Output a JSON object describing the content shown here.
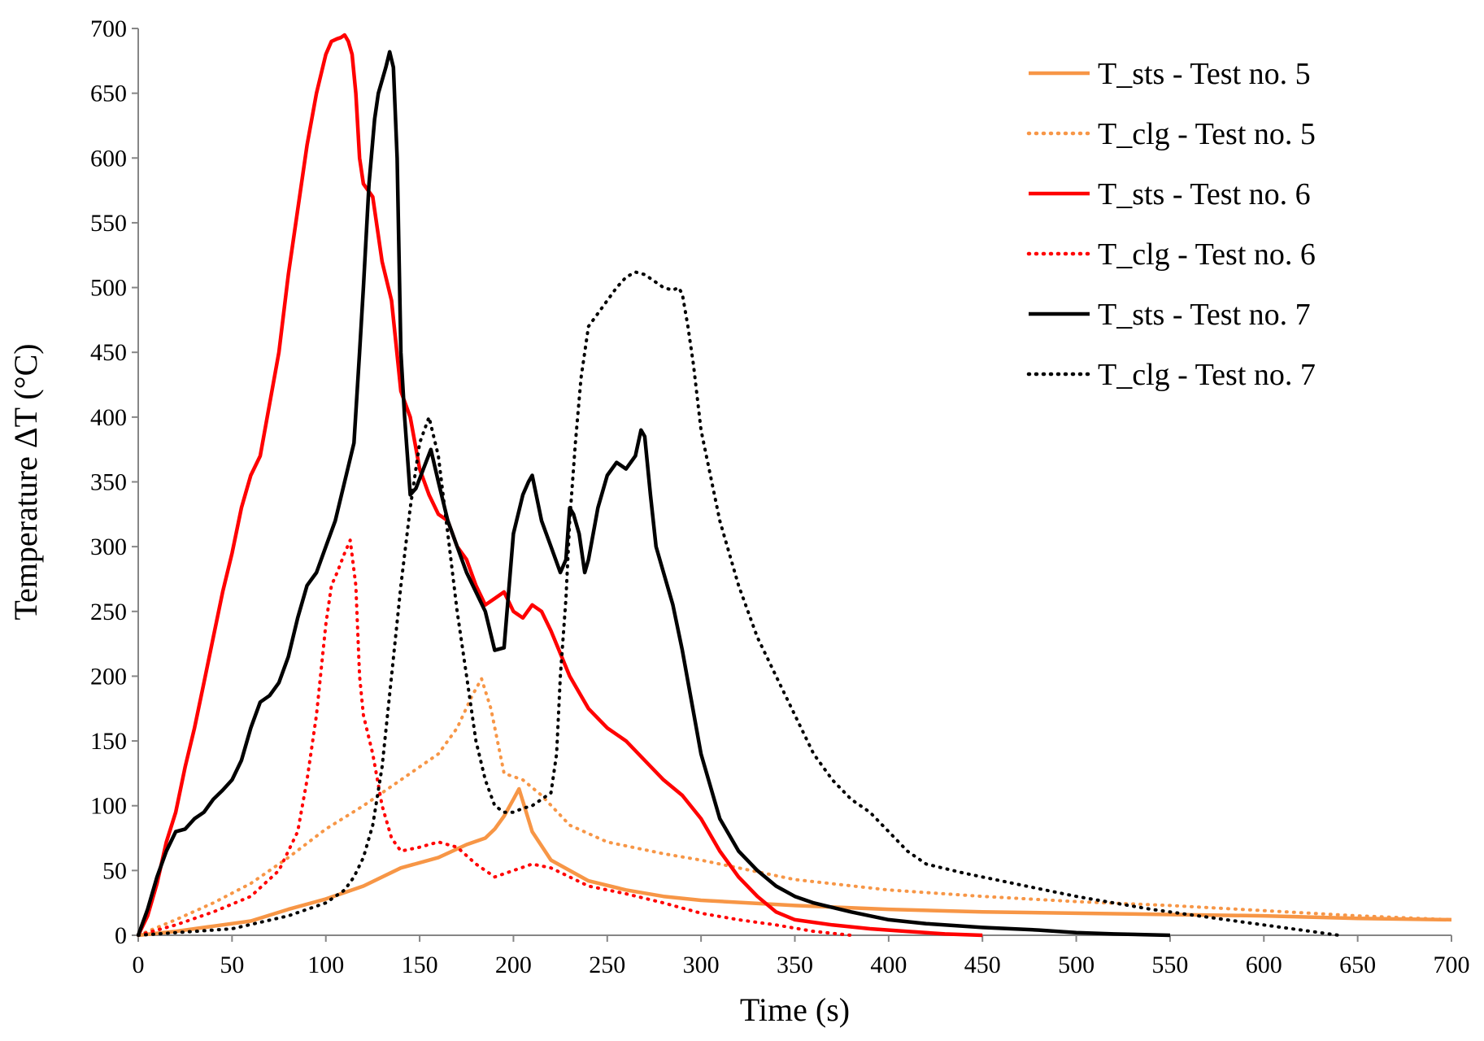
{
  "chart_data": {
    "type": "line",
    "title": "",
    "xlabel": "Time (s)",
    "ylabel": "Temperature ΔT (°C)",
    "xlim": [
      0,
      700
    ],
    "ylim": [
      0,
      700
    ],
    "xticks": [
      0,
      50,
      100,
      150,
      200,
      250,
      300,
      350,
      400,
      450,
      500,
      550,
      600,
      650,
      700
    ],
    "yticks": [
      0,
      50,
      100,
      150,
      200,
      250,
      300,
      350,
      400,
      450,
      500,
      550,
      600,
      650,
      700
    ],
    "xtick_labels": [
      "0",
      "50",
      "100",
      "150",
      "200",
      "250",
      "300",
      "350",
      "400",
      "450",
      "500",
      "550",
      "600",
      "650",
      "700"
    ],
    "ytick_labels": [
      "0",
      "50",
      "100",
      "150",
      "200",
      "250",
      "300",
      "350",
      "400",
      "450",
      "500",
      "550",
      "600",
      "650",
      "700"
    ],
    "grid": false,
    "legend_position": "top-right",
    "series": [
      {
        "name": "T_sts - Test no. 5",
        "color": "#F79646",
        "dash": "solid",
        "x": [
          0,
          20,
          40,
          60,
          80,
          100,
          120,
          140,
          160,
          175,
          185,
          190,
          195,
          200,
          203,
          210,
          220,
          240,
          260,
          280,
          300,
          350,
          400,
          450,
          500,
          550,
          600,
          650,
          700
        ],
        "y": [
          0,
          3,
          7,
          11,
          20,
          28,
          38,
          52,
          60,
          70,
          75,
          82,
          92,
          105,
          113,
          80,
          58,
          42,
          35,
          30,
          27,
          23,
          20,
          18,
          17,
          16,
          15,
          13,
          12
        ]
      },
      {
        "name": "T_clg - Test no. 5",
        "color": "#F79646",
        "dash": "dotted",
        "x": [
          0,
          20,
          40,
          60,
          80,
          100,
          120,
          140,
          160,
          170,
          178,
          183,
          188,
          195,
          205,
          215,
          230,
          250,
          280,
          300,
          350,
          400,
          450,
          500,
          550,
          600,
          650,
          700
        ],
        "y": [
          0,
          12,
          25,
          40,
          60,
          82,
          100,
          120,
          140,
          160,
          185,
          198,
          175,
          125,
          120,
          108,
          85,
          72,
          63,
          58,
          43,
          35,
          30,
          26,
          23,
          19,
          15,
          12
        ]
      },
      {
        "name": "T_sts - Test no. 6",
        "color": "#FF0000",
        "dash": "solid",
        "x": [
          0,
          5,
          10,
          15,
          20,
          25,
          30,
          35,
          40,
          45,
          50,
          55,
          60,
          65,
          70,
          75,
          80,
          85,
          90,
          95,
          100,
          103,
          106,
          108,
          110,
          112,
          114,
          116,
          118,
          120,
          125,
          130,
          135,
          140,
          145,
          150,
          155,
          160,
          165,
          170,
          175,
          180,
          185,
          190,
          195,
          200,
          205,
          210,
          215,
          220,
          230,
          240,
          250,
          260,
          270,
          280,
          290,
          300,
          310,
          320,
          330,
          340,
          350,
          370,
          390,
          410,
          430,
          450
        ],
        "y": [
          0,
          15,
          40,
          72,
          95,
          130,
          160,
          195,
          230,
          265,
          295,
          330,
          355,
          370,
          410,
          450,
          510,
          560,
          610,
          650,
          680,
          690,
          692,
          693,
          695,
          690,
          680,
          650,
          600,
          580,
          570,
          520,
          490,
          420,
          400,
          360,
          340,
          325,
          320,
          300,
          290,
          270,
          255,
          260,
          265,
          250,
          245,
          255,
          250,
          235,
          200,
          175,
          160,
          150,
          135,
          120,
          108,
          90,
          65,
          45,
          30,
          18,
          12,
          8,
          5,
          3,
          1,
          0
        ]
      },
      {
        "name": "T_clg - Test no. 6",
        "color": "#FF0000",
        "dash": "dotted",
        "x": [
          0,
          20,
          40,
          60,
          75,
          85,
          90,
          95,
          100,
          103,
          106,
          110,
          113,
          116,
          118,
          120,
          125,
          130,
          135,
          140,
          150,
          160,
          170,
          180,
          190,
          200,
          210,
          220,
          240,
          260,
          280,
          300,
          320,
          340,
          360,
          380
        ],
        "y": [
          0,
          8,
          18,
          30,
          50,
          80,
          120,
          170,
          240,
          270,
          280,
          295,
          305,
          270,
          200,
          170,
          140,
          100,
          75,
          65,
          68,
          72,
          68,
          55,
          45,
          50,
          55,
          52,
          38,
          32,
          25,
          17,
          12,
          8,
          3,
          0
        ]
      },
      {
        "name": "T_sts - Test no. 7",
        "color": "#000000",
        "dash": "solid",
        "x": [
          0,
          5,
          10,
          15,
          20,
          25,
          30,
          35,
          40,
          45,
          50,
          55,
          60,
          65,
          70,
          75,
          80,
          85,
          90,
          95,
          100,
          105,
          110,
          115,
          118,
          120,
          123,
          126,
          128,
          130,
          132,
          134,
          136,
          138,
          140,
          142,
          145,
          148,
          152,
          156,
          160,
          165,
          170,
          175,
          180,
          185,
          190,
          195,
          200,
          205,
          208,
          210,
          215,
          220,
          225,
          228,
          230,
          232,
          235,
          238,
          240,
          245,
          250,
          255,
          260,
          265,
          268,
          270,
          273,
          276,
          280,
          285,
          290,
          295,
          300,
          310,
          320,
          330,
          340,
          350,
          360,
          380,
          400,
          420,
          450,
          480,
          500,
          520,
          550
        ],
        "y": [
          0,
          20,
          45,
          65,
          80,
          82,
          90,
          95,
          105,
          112,
          120,
          135,
          160,
          180,
          185,
          195,
          215,
          245,
          270,
          280,
          300,
          320,
          350,
          380,
          450,
          500,
          580,
          630,
          650,
          660,
          670,
          682,
          670,
          600,
          450,
          400,
          340,
          345,
          360,
          375,
          350,
          320,
          300,
          280,
          265,
          250,
          220,
          222,
          310,
          340,
          350,
          355,
          320,
          300,
          280,
          290,
          330,
          325,
          310,
          280,
          290,
          330,
          355,
          365,
          360,
          370,
          390,
          385,
          340,
          300,
          280,
          255,
          220,
          180,
          140,
          90,
          65,
          50,
          38,
          30,
          25,
          18,
          12,
          9,
          6,
          4,
          2,
          1,
          0
        ]
      },
      {
        "name": "T_clg - Test no. 7",
        "color": "#000000",
        "dash": "dotted",
        "x": [
          0,
          50,
          80,
          100,
          110,
          115,
          120,
          125,
          130,
          135,
          140,
          145,
          150,
          155,
          160,
          165,
          170,
          175,
          180,
          185,
          190,
          195,
          200,
          205,
          210,
          215,
          220,
          223,
          225,
          228,
          230,
          233,
          236,
          240,
          245,
          250,
          255,
          260,
          265,
          270,
          275,
          280,
          285,
          288,
          290,
          293,
          296,
          300,
          310,
          320,
          330,
          340,
          350,
          360,
          370,
          380,
          390,
          400,
          410,
          420,
          440,
          460,
          480,
          500,
          520,
          540,
          560,
          580,
          600,
          620,
          640
        ],
        "y": [
          0,
          5,
          15,
          25,
          35,
          45,
          60,
          85,
          130,
          200,
          270,
          330,
          380,
          400,
          370,
          310,
          250,
          200,
          150,
          120,
          100,
          95,
          95,
          98,
          100,
          105,
          110,
          140,
          200,
          260,
          320,
          380,
          430,
          470,
          480,
          490,
          500,
          508,
          512,
          510,
          505,
          500,
          498,
          500,
          495,
          470,
          440,
          390,
          320,
          270,
          230,
          200,
          170,
          140,
          120,
          105,
          95,
          80,
          65,
          55,
          48,
          42,
          36,
          30,
          25,
          20,
          16,
          12,
          8,
          4,
          0
        ]
      }
    ]
  }
}
